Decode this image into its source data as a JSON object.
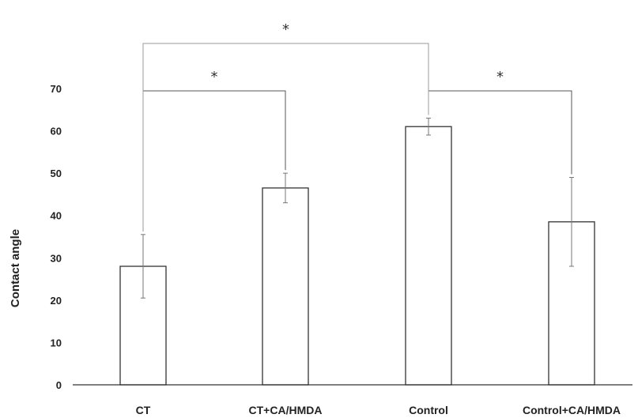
{
  "chart_data": {
    "type": "bar",
    "categories": [
      "CT",
      "CT+CA/HMDA",
      "Control",
      "Control+CA/HMDA"
    ],
    "values": [
      28,
      46.5,
      61,
      38.5
    ],
    "errors": [
      7.5,
      3.5,
      2,
      10.5
    ],
    "ylabel": "Contact angle",
    "xlabel": "",
    "ylim": [
      0,
      70
    ],
    "yticks": [
      0,
      10,
      20,
      30,
      40,
      50,
      60,
      70
    ],
    "grid": false,
    "significance": [
      {
        "from": 0,
        "to": 1,
        "label": "*"
      },
      {
        "from": 2,
        "to": 3,
        "label": "*"
      },
      {
        "from": 0,
        "to": 2,
        "label": "*"
      }
    ],
    "colors": {
      "bar_fill": "#ffffff",
      "bar_stroke": "#333333",
      "bracket": "#555555",
      "bracket_light": "#999999"
    }
  }
}
